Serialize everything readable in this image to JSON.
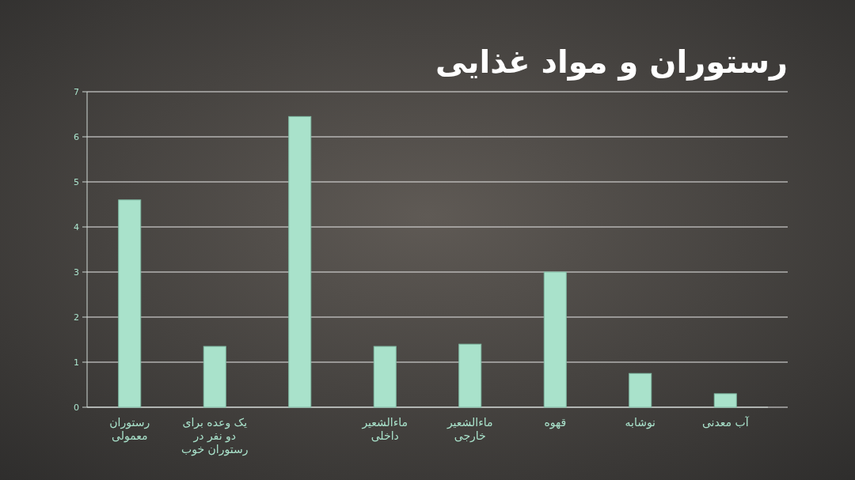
{
  "chart_data": {
    "type": "bar",
    "title": "رستوران و مواد غذایی",
    "categories": [
      "رستوران معمولی",
      "یک وعده برای دو نفر در رستوران خوب",
      null,
      "ماءالشعیر داخلی",
      "ماءالشعیر خارجی",
      "قهوه",
      "نوشابه",
      "آب معدنی"
    ],
    "values": [
      4.6,
      1.35,
      6.45,
      1.35,
      1.4,
      3.0,
      0.75,
      0.3
    ],
    "color": "#a9e2cb",
    "ylim": [
      0,
      7
    ],
    "yticks": [
      0,
      1,
      2,
      3,
      4,
      5,
      6,
      7
    ],
    "grid": "y"
  }
}
